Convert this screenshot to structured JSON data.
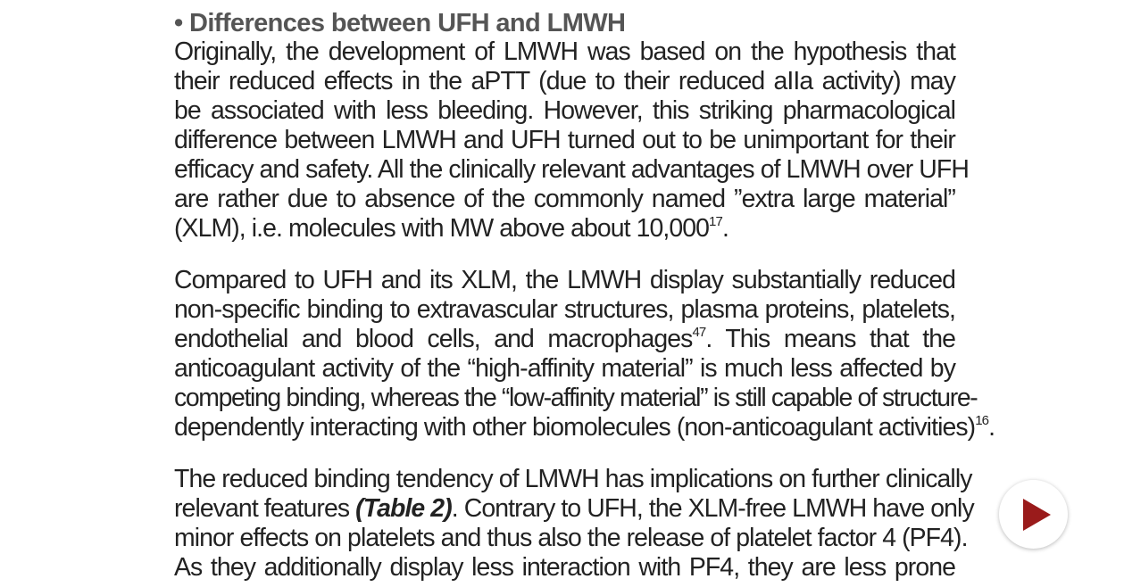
{
  "heading": "• Differences between UFH and LMWH",
  "paragraph1": {
    "lines": [
      "Originally, the development of LMWH was based on the hypothesis that",
      "their reduced effects in the aPTT (due to their reduced aIIa activity) may",
      "be associated with less bleeding. However, this striking pharmacological",
      "difference between LMWH and UFH turned out to be unimportant for their",
      "efficacy and safety. All the clinically relevant advantages of LMWH over UFH",
      "are rather due to absence of the commonly named ”extra large material”"
    ],
    "last_line_text": "(XLM), i.e. molecules with MW above about 10,000",
    "last_line_ref": "17",
    "last_line_end": "."
  },
  "paragraph2": {
    "line1": "Compared to UFH and its XLM, the LMWH display substantially reduced",
    "line2": "non-specific binding to extravascular structures, plasma proteins, platelets,",
    "line3_text": "endothelial and blood cells, and macrophages",
    "line3_ref": "47",
    "line3_end": ". This means that the",
    "line4": "anticoagulant activity of the “high-affinity material” is much less affected by",
    "line5": "competing binding, whereas the “low-affinity material” is still capable of structure-",
    "line6_text": "dependently interacting with other biomolecules (non-anticoagulant activities)",
    "line6_ref": "16",
    "line6_end": "."
  },
  "paragraph3": {
    "line1": "The reduced binding tendency of LMWH has implications on further clinically",
    "line2_start": "relevant features ",
    "line2_table_ref": "(Table 2)",
    "line2_end": ". Contrary to UFH, the XLM-free LMWH have only",
    "line3": "minor effects on platelets and thus also the release of platelet factor 4 (PF4).",
    "line4": "As they additionally display less interaction with PF4, they are less prone"
  },
  "play_button": {
    "icon": "play-icon",
    "icon_color": "#9a1b1b"
  }
}
